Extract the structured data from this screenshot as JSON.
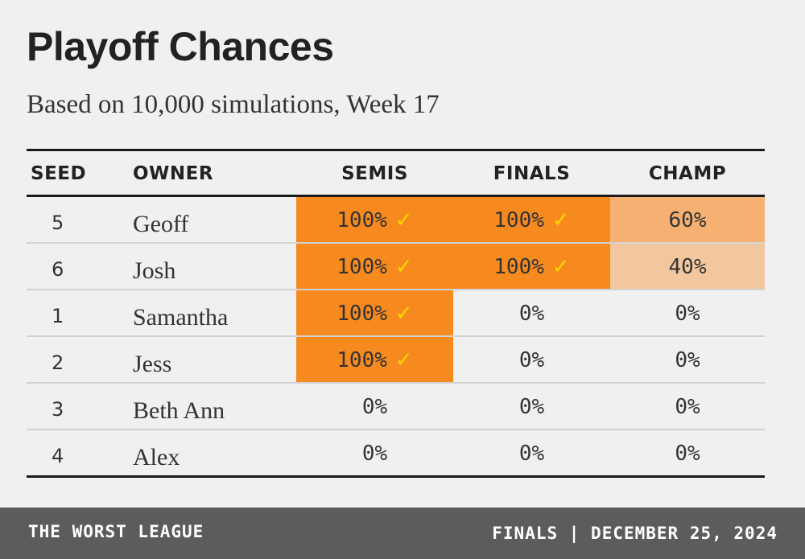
{
  "header": {
    "title": "Playoff Chances",
    "subtitle": "Based on 10,000 simulations, Week 17"
  },
  "colors": {
    "full": "#f78a1f",
    "high": "#f5b072",
    "low": "#f3c79e",
    "none": "#f0f0f0",
    "check": "#ffd400"
  },
  "chart_data": {
    "type": "table",
    "title": "Playoff Chances",
    "subtitle": "Based on 10,000 simulations, Week 17",
    "columns": [
      "SEED",
      "OWNER",
      "SEMIS",
      "FINALS",
      "CHAMP"
    ],
    "rows": [
      {
        "seed": "5",
        "owner": "Geoff",
        "semis": 100,
        "finals": 100,
        "champ": 60,
        "semis_clinched": true,
        "finals_clinched": true
      },
      {
        "seed": "6",
        "owner": "Josh",
        "semis": 100,
        "finals": 100,
        "champ": 40,
        "semis_clinched": true,
        "finals_clinched": true
      },
      {
        "seed": "1",
        "owner": "Samantha",
        "semis": 100,
        "finals": 0,
        "champ": 0,
        "semis_clinched": true,
        "finals_clinched": false
      },
      {
        "seed": "2",
        "owner": "Jess",
        "semis": 100,
        "finals": 0,
        "champ": 0,
        "semis_clinched": true,
        "finals_clinched": false
      },
      {
        "seed": "3",
        "owner": "Beth Ann",
        "semis": 0,
        "finals": 0,
        "champ": 0,
        "semis_clinched": false,
        "finals_clinched": false
      },
      {
        "seed": "4",
        "owner": "Alex",
        "semis": 0,
        "finals": 0,
        "champ": 0,
        "semis_clinched": false,
        "finals_clinched": false
      }
    ]
  },
  "footer": {
    "left": "THE WORST LEAGUE",
    "right": "FINALS | DECEMBER 25, 2024"
  }
}
